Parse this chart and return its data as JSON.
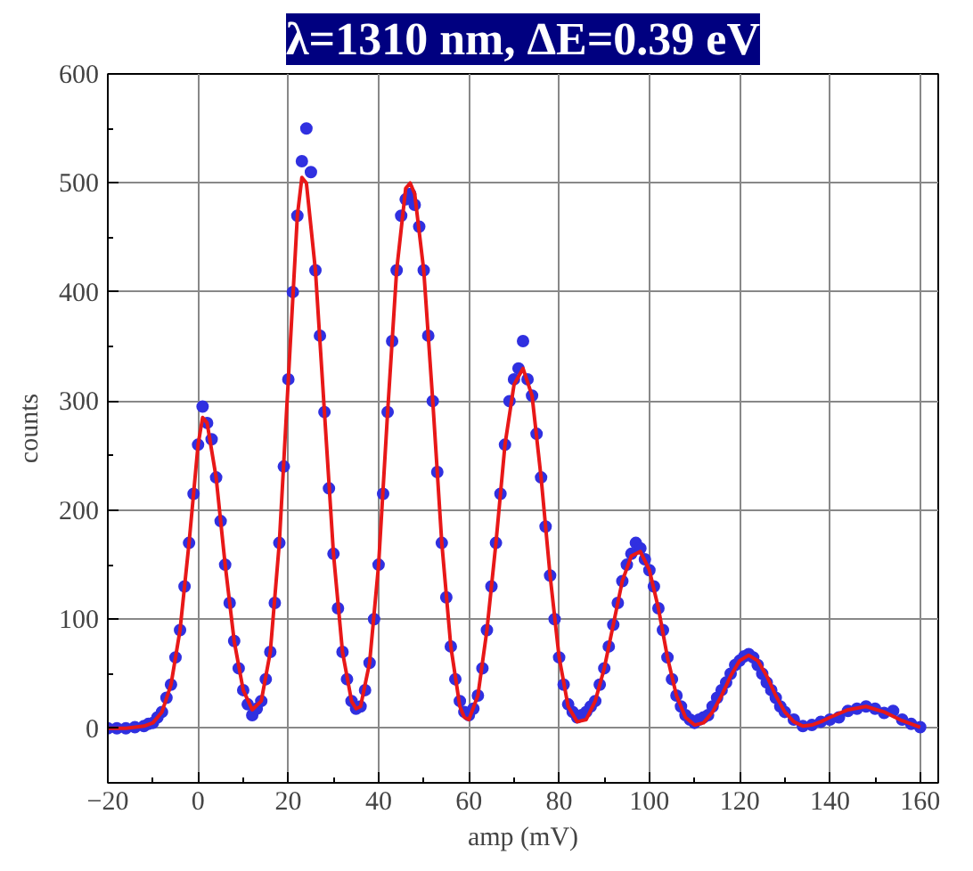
{
  "chart_data": {
    "type": "scatter",
    "title": "λ=1310 nm, ΔE=0.39 eV",
    "xlabel": "amp (mV)",
    "ylabel": "counts",
    "xlim": [
      -20,
      164
    ],
    "ylim": [
      -50,
      600
    ],
    "xticks": [
      -20,
      0,
      20,
      40,
      60,
      80,
      100,
      120,
      140,
      160
    ],
    "yticks": [
      0,
      100,
      200,
      300,
      400,
      500,
      600
    ],
    "grid": true,
    "marker": "circle",
    "series": [
      {
        "color": "#3030e0",
        "x": [
          -20,
          -18,
          -16,
          -14,
          -12,
          -11,
          -10,
          -9,
          -8,
          -7,
          -6,
          -5,
          -4,
          -3,
          -2,
          -1,
          0,
          1,
          2,
          3,
          4,
          5,
          6,
          7,
          8,
          9,
          10,
          11,
          12,
          13,
          14,
          15,
          16,
          17,
          18,
          19,
          20,
          21,
          22,
          23,
          24,
          25,
          26,
          27,
          28,
          29,
          30,
          31,
          32,
          33,
          34,
          35,
          36,
          37,
          38,
          39,
          40,
          41,
          42,
          43,
          44,
          45,
          46,
          47,
          48,
          49,
          50,
          51,
          52,
          53,
          54,
          55,
          56,
          57,
          58,
          59,
          60,
          61,
          62,
          63,
          64,
          65,
          66,
          67,
          68,
          69,
          70,
          71,
          72,
          73,
          74,
          75,
          76,
          77,
          78,
          79,
          80,
          81,
          82,
          83,
          84,
          85,
          86,
          87,
          88,
          89,
          90,
          91,
          92,
          93,
          94,
          95,
          96,
          97,
          98,
          99,
          100,
          101,
          102,
          103,
          104,
          105,
          106,
          107,
          108,
          109,
          110,
          111,
          112,
          113,
          114,
          115,
          116,
          117,
          118,
          119,
          120,
          121,
          122,
          123,
          124,
          125,
          126,
          127,
          128,
          129,
          130,
          132,
          134,
          136,
          138,
          140,
          142,
          144,
          146,
          148,
          150,
          152,
          154,
          156,
          158,
          160
        ],
        "values": [
          0,
          0,
          0,
          1,
          2,
          4,
          5,
          10,
          15,
          28,
          40,
          65,
          90,
          130,
          170,
          215,
          260,
          295,
          280,
          265,
          230,
          190,
          150,
          115,
          80,
          55,
          35,
          22,
          12,
          18,
          25,
          45,
          70,
          115,
          170,
          240,
          320,
          400,
          470,
          520,
          550,
          510,
          420,
          360,
          290,
          220,
          160,
          110,
          70,
          45,
          25,
          18,
          20,
          35,
          60,
          100,
          150,
          215,
          290,
          355,
          420,
          470,
          485,
          490,
          480,
          460,
          420,
          360,
          300,
          235,
          170,
          120,
          75,
          45,
          25,
          15,
          12,
          18,
          30,
          55,
          90,
          130,
          170,
          215,
          260,
          300,
          320,
          330,
          355,
          320,
          305,
          270,
          230,
          185,
          140,
          100,
          65,
          40,
          22,
          15,
          10,
          12,
          15,
          20,
          25,
          40,
          55,
          75,
          95,
          115,
          135,
          150,
          160,
          170,
          165,
          155,
          145,
          130,
          110,
          90,
          65,
          45,
          30,
          20,
          12,
          8,
          5,
          8,
          10,
          12,
          20,
          28,
          35,
          42,
          50,
          58,
          62,
          66,
          68,
          65,
          58,
          50,
          42,
          35,
          28,
          20,
          15,
          8,
          2,
          3,
          6,
          8,
          10,
          16,
          18,
          20,
          18,
          14,
          16,
          8,
          4,
          1
        ]
      },
      {
        "type": "line",
        "color": "#e81818",
        "line_style": "solid",
        "marker": "none",
        "x": [
          -20,
          -16,
          -12,
          -10,
          -8,
          -6,
          -4,
          -2,
          0,
          1,
          2,
          4,
          6,
          8,
          10,
          12,
          14,
          16,
          18,
          20,
          22,
          23,
          24,
          26,
          28,
          30,
          32,
          34,
          35,
          36,
          38,
          40,
          42,
          44,
          46,
          47,
          48,
          50,
          52,
          54,
          56,
          58,
          59,
          60,
          62,
          64,
          66,
          68,
          70,
          72,
          74,
          76,
          78,
          80,
          82,
          84,
          86,
          88,
          90,
          92,
          94,
          96,
          98,
          100,
          102,
          104,
          106,
          108,
          110,
          112,
          114,
          116,
          118,
          120,
          122,
          124,
          126,
          128,
          130,
          132,
          134,
          136,
          138,
          140,
          144,
          148,
          152,
          156,
          160
        ],
        "values": [
          0,
          0,
          2,
          5,
          15,
          40,
          90,
          170,
          260,
          285,
          280,
          230,
          150,
          80,
          35,
          17,
          25,
          70,
          170,
          320,
          470,
          505,
          500,
          420,
          290,
          160,
          70,
          25,
          18,
          20,
          60,
          150,
          290,
          420,
          495,
          500,
          490,
          420,
          300,
          170,
          75,
          20,
          10,
          8,
          30,
          90,
          170,
          260,
          315,
          330,
          305,
          230,
          140,
          65,
          20,
          6,
          8,
          25,
          55,
          95,
          135,
          158,
          162,
          145,
          110,
          65,
          30,
          10,
          3,
          5,
          15,
          30,
          48,
          62,
          67,
          62,
          48,
          30,
          15,
          6,
          2,
          3,
          6,
          10,
          17,
          20,
          15,
          7,
          1
        ]
      }
    ]
  }
}
